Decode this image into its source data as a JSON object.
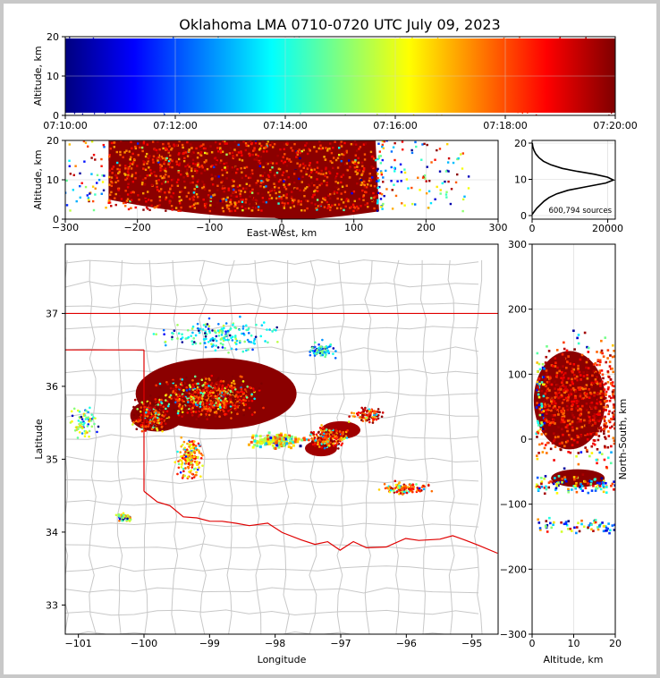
{
  "chart_data": [
    {
      "type": "scatter",
      "panel": "time-altitude",
      "title": "Oklahoma LMA 0710-0720 UTC July 09, 2023",
      "xlabel": "",
      "ylabel": "Altitude, km",
      "x_ticks": [
        "07:10:00",
        "07:12:00",
        "07:14:00",
        "07:16:00",
        "07:18:00",
        "07:20:00"
      ],
      "y_ticks": [
        "0",
        "10",
        "20"
      ],
      "ylim": [
        0,
        20
      ],
      "color_by": "time",
      "colormap": "jet",
      "grid": true
    },
    {
      "type": "scatter",
      "panel": "east-west-altitude",
      "xlabel": "East-West, km",
      "ylabel": "Altitude, km",
      "xlim": [
        -300,
        300
      ],
      "ylim": [
        0,
        20
      ],
      "x_ticks": [
        "−300",
        "−200",
        "−100",
        "0",
        "100",
        "200",
        "300"
      ],
      "y_ticks": [
        "0",
        "10",
        "20"
      ],
      "grid": true
    },
    {
      "type": "line",
      "panel": "altitude-histogram",
      "xlim": [
        0,
        22000
      ],
      "ylim": [
        0,
        20
      ],
      "x_ticks": [
        "0",
        "20000"
      ],
      "y_ticks": [
        "0",
        "10",
        "20"
      ],
      "annotation": "600,794 sources",
      "points": [
        [
          0,
          0.3
        ],
        [
          500,
          1
        ],
        [
          1200,
          2
        ],
        [
          2200,
          3
        ],
        [
          3200,
          4
        ],
        [
          4500,
          5
        ],
        [
          6500,
          6
        ],
        [
          9500,
          7
        ],
        [
          14500,
          8
        ],
        [
          19500,
          9
        ],
        [
          21500,
          9.8
        ],
        [
          20000,
          10.6
        ],
        [
          16500,
          11.4
        ],
        [
          12000,
          12.2
        ],
        [
          8000,
          13
        ],
        [
          5000,
          14
        ],
        [
          3000,
          15
        ],
        [
          1800,
          16
        ],
        [
          1000,
          17
        ],
        [
          500,
          18
        ],
        [
          200,
          19
        ],
        [
          50,
          20
        ]
      ]
    },
    {
      "type": "scatter",
      "panel": "plan-view",
      "xlabel": "Longitude",
      "ylabel": "Latitude",
      "xlim": [
        -101.2,
        -94.6
      ],
      "ylim": [
        32.6,
        37.95
      ],
      "x_ticks": [
        "−101",
        "−100",
        "−99",
        "−98",
        "−97",
        "−96",
        "−95"
      ],
      "y_ticks": [
        "33",
        "34",
        "35",
        "36",
        "37"
      ],
      "grid": false,
      "basemap": "county and state boundaries"
    },
    {
      "type": "scatter",
      "panel": "altitude-north-south",
      "xlabel": "Altitude, km",
      "ylabel": "North-South, km",
      "xlim": [
        0,
        20
      ],
      "ylim": [
        -300,
        300
      ],
      "x_ticks": [
        "0",
        "10",
        "20"
      ],
      "y_ticks": [
        "−300",
        "−200",
        "−100",
        "0",
        "100",
        "200",
        "300"
      ],
      "grid": true
    }
  ],
  "colors": {
    "state_line": "#e00000",
    "county_line": "#c8c8c8",
    "axes": "#000000",
    "grid": "#d6d6d6",
    "figure_border": "#c8c8c8",
    "colormap_stops": [
      "#00007f",
      "#0000ff",
      "#007fff",
      "#00ffff",
      "#7fff7f",
      "#ffff00",
      "#ff7f00",
      "#ff0000",
      "#7f0000"
    ]
  }
}
